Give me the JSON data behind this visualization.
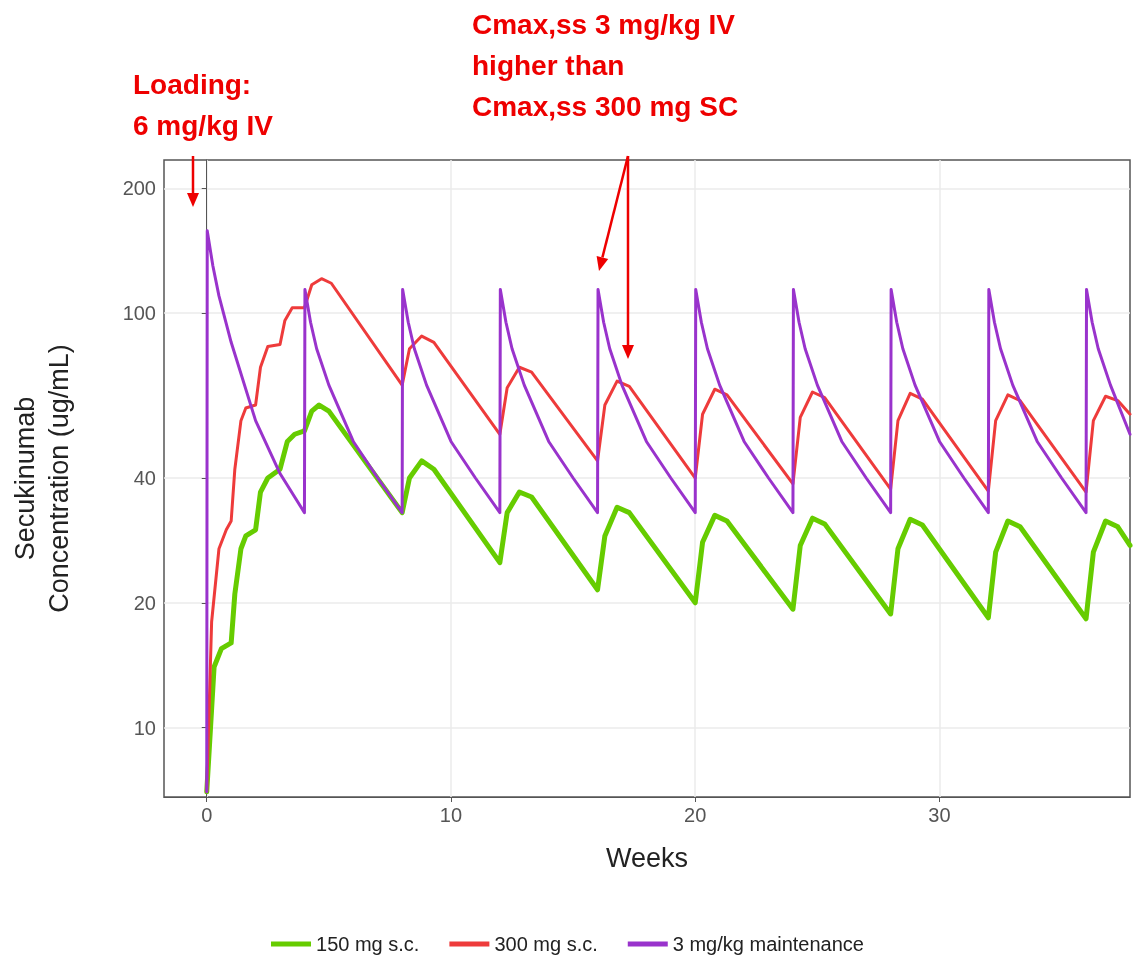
{
  "chart_data": {
    "type": "line",
    "xlabel": "Weeks",
    "ylabel": "Secukinumab Concentration (ug/mL)",
    "annotations": [
      "Loading:\n6 mg/kg IV",
      "Cmax,ss 3 mg/kg IV\nhigher than\nCmax,ss 300 mg SC"
    ],
    "xlim": [
      -1.75,
      37.8
    ],
    "xticks": [
      0,
      10,
      20,
      30
    ],
    "ylim": [
      6.8,
      234
    ],
    "yticks": [
      10,
      20,
      40,
      100,
      200
    ],
    "log": "y",
    "grid": true,
    "legend": "bottom",
    "marker": "none",
    "line_style": "solid",
    "series": [
      {
        "name": "150 mg s.c.",
        "color": "#66cc00",
        "x": [
          0,
          0.3,
          0.6,
          1,
          1.15,
          1.4,
          1.6,
          2,
          2.2,
          2.5,
          3,
          3.3,
          3.6,
          4,
          4.3,
          4.6,
          5,
          8,
          8.3,
          8.8,
          9.3,
          12,
          12.3,
          12.8,
          13.3,
          16,
          16.3,
          16.8,
          17.3,
          20,
          20.3,
          20.8,
          21.3,
          24,
          24.3,
          24.8,
          25.3,
          28,
          28.3,
          28.8,
          29.3,
          32,
          32.3,
          32.8,
          33.3,
          36,
          36.3,
          36.8,
          37.3,
          37.8
        ],
        "values": [
          7,
          14,
          15.5,
          16,
          21,
          27,
          29,
          30,
          37,
          40,
          42,
          49,
          51,
          52,
          58,
          60,
          58,
          33,
          40,
          44,
          42,
          25,
          33,
          37,
          36,
          21.5,
          29,
          34,
          33,
          20,
          28,
          32.5,
          31.5,
          19.3,
          27.5,
          32,
          31,
          18.8,
          27,
          31.8,
          30.8,
          18.4,
          26.5,
          31.5,
          30.5,
          18.3,
          26.5,
          31.5,
          30.5,
          27.5
        ]
      },
      {
        "name": "300 mg s.c.",
        "color": "#ee3b3b",
        "x": [
          0,
          0.2,
          0.5,
          0.8,
          1,
          1.15,
          1.4,
          1.6,
          2,
          2.2,
          2.5,
          3,
          3.2,
          3.5,
          4,
          4.3,
          4.7,
          5.1,
          8,
          8.3,
          8.8,
          9.3,
          12,
          12.3,
          12.8,
          13.3,
          16,
          16.3,
          16.8,
          17.3,
          20,
          20.3,
          20.8,
          21.3,
          24,
          24.3,
          24.8,
          25.3,
          28,
          28.3,
          28.8,
          29.3,
          32,
          32.3,
          32.8,
          33.3,
          36,
          36.3,
          36.8,
          37.3,
          37.8
        ],
        "values": [
          7,
          18,
          27,
          30,
          31.5,
          42,
          55,
          59,
          60,
          74,
          83,
          84,
          96,
          103,
          103,
          117,
          121,
          118,
          67,
          82,
          88,
          85,
          51,
          66,
          74,
          72,
          44,
          60,
          68.5,
          66.5,
          40,
          57,
          65.5,
          63.5,
          38.7,
          56,
          64.5,
          62.5,
          37.6,
          55,
          64,
          62,
          37.2,
          55,
          63.5,
          61.5,
          37,
          55,
          63,
          61.5,
          57
        ]
      },
      {
        "name": "3 mg/kg maintenance",
        "color": "#9933cc",
        "x": [
          0,
          0.02,
          0.25,
          0.5,
          1,
          2,
          3,
          4,
          4.02,
          4.25,
          4.5,
          5,
          6,
          7,
          8,
          8.02,
          8.25,
          8.5,
          9,
          10,
          11,
          12,
          12.02,
          12.25,
          12.5,
          13,
          14,
          15,
          16,
          16.02,
          16.25,
          16.5,
          17,
          18,
          19,
          20,
          20.02,
          20.25,
          20.5,
          21,
          22,
          23,
          24,
          24.02,
          24.25,
          24.5,
          25,
          26,
          27,
          28,
          28.02,
          28.25,
          28.5,
          29,
          30,
          31,
          32,
          32.02,
          32.25,
          32.5,
          33,
          34,
          35,
          36,
          36.02,
          36.25,
          36.5,
          37,
          37.8
        ],
        "values": [
          7,
          158,
          130,
          110,
          85,
          55,
          41,
          33,
          114,
          95,
          82,
          67,
          49,
          40,
          33,
          114,
          95,
          82,
          67,
          49,
          40,
          33,
          114,
          95,
          82,
          67,
          49,
          40,
          33,
          114,
          95,
          82,
          67,
          49,
          40,
          33,
          114,
          95,
          82,
          67,
          49,
          40,
          33,
          114,
          95,
          82,
          67,
          49,
          40,
          33,
          114,
          95,
          82,
          67,
          49,
          40,
          33,
          114,
          95,
          82,
          67,
          49,
          40,
          33,
          114,
          95,
          82,
          67,
          51
        ]
      }
    ]
  }
}
